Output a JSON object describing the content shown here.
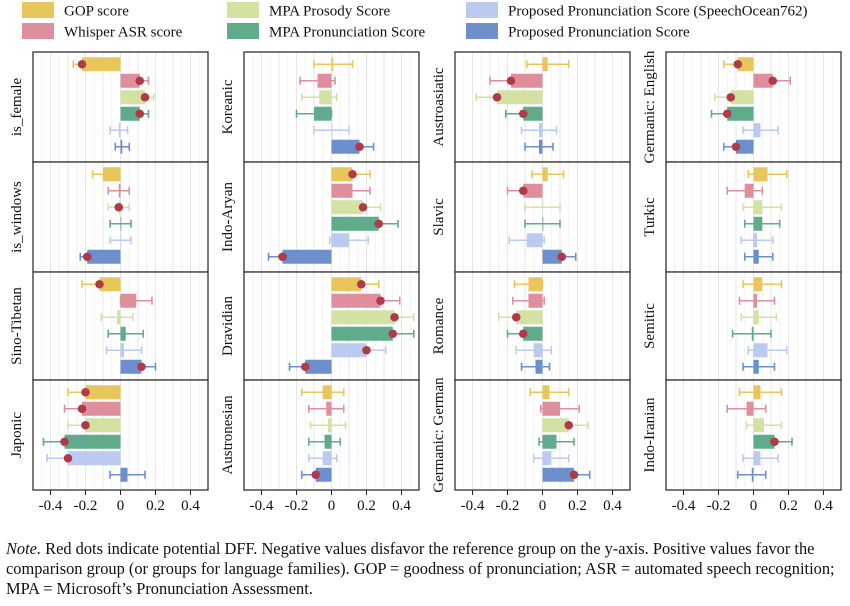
{
  "chart_data": {
    "type": "bar",
    "orientation": "horizontal",
    "legend": {
      "placement": "top",
      "items": [
        {
          "key": "gop",
          "label": "GOP score",
          "color": "#e9c65b"
        },
        {
          "key": "asr",
          "label": "Whisper ASR score",
          "color": "#de8e9c"
        },
        {
          "key": "prosody",
          "label": "MPA Prosody Score",
          "color": "#d3e2a2"
        },
        {
          "key": "mpa",
          "label": "MPA Pronunciation Score",
          "color": "#5fab8c"
        },
        {
          "key": "prop762",
          "label": "Proposed Pronunciation Score (SpeechOcean762)",
          "color": "#bccaf0"
        },
        {
          "key": "proposed",
          "label": "Proposed Pronunciation Score",
          "color": "#6d8fcc"
        }
      ]
    },
    "dot_color": "#b03a48",
    "xlim": [
      -0.5,
      0.5
    ],
    "xticks": [
      -0.4,
      -0.2,
      0,
      0.2,
      0.4
    ],
    "xtick_labels": [
      "-0.4",
      "-0.2",
      "0",
      "0.2",
      "0.4"
    ],
    "grid": true,
    "panels": [
      {
        "label": "is_female",
        "values": [
          -0.22,
          0.11,
          0.14,
          0.11,
          -0.01,
          0.01
        ],
        "err": [
          0.05,
          0.05,
          0.05,
          0.05,
          0.05,
          0.04
        ],
        "dff": [
          true,
          true,
          true,
          true,
          false,
          false
        ]
      },
      {
        "label": "is_windows",
        "values": [
          -0.1,
          -0.01,
          -0.01,
          0.0,
          0.0,
          -0.19
        ],
        "err": [
          0.06,
          0.06,
          0.06,
          0.06,
          0.06,
          0.04
        ],
        "dff": [
          false,
          false,
          true,
          false,
          false,
          true
        ]
      },
      {
        "label": "Sino-Tibetan",
        "values": [
          -0.12,
          0.09,
          -0.02,
          0.03,
          0.02,
          0.12
        ],
        "err": [
          0.1,
          0.09,
          0.09,
          0.1,
          0.1,
          0.08
        ],
        "dff": [
          true,
          false,
          false,
          false,
          false,
          true
        ]
      },
      {
        "label": "Japonic",
        "values": [
          -0.2,
          -0.22,
          -0.2,
          -0.32,
          -0.3,
          0.04
        ],
        "err": [
          0.1,
          0.1,
          0.1,
          0.12,
          0.12,
          0.1
        ],
        "dff": [
          true,
          true,
          true,
          true,
          true,
          false
        ]
      },
      {
        "label": "Koreanic",
        "values": [
          0.01,
          -0.08,
          -0.07,
          -0.1,
          0.0,
          0.16
        ],
        "err": [
          0.11,
          0.1,
          0.1,
          0.1,
          0.1,
          0.08
        ],
        "dff": [
          false,
          false,
          false,
          false,
          false,
          true
        ]
      },
      {
        "label": "Indo-Aryan",
        "values": [
          0.12,
          0.12,
          0.18,
          0.27,
          0.1,
          -0.28
        ],
        "err": [
          0.1,
          0.1,
          0.1,
          0.11,
          0.11,
          0.08
        ],
        "dff": [
          true,
          false,
          true,
          true,
          false,
          true
        ]
      },
      {
        "label": "Dravidian",
        "values": [
          0.17,
          0.28,
          0.36,
          0.35,
          0.2,
          -0.15
        ],
        "err": [
          0.1,
          0.11,
          0.11,
          0.12,
          0.11,
          0.09
        ],
        "dff": [
          true,
          true,
          true,
          true,
          true,
          true
        ]
      },
      {
        "label": "Austronesian",
        "values": [
          -0.05,
          -0.03,
          -0.02,
          -0.04,
          -0.05,
          -0.09
        ],
        "err": [
          0.12,
          0.1,
          0.1,
          0.09,
          0.08,
          0.08
        ],
        "dff": [
          false,
          false,
          false,
          false,
          false,
          true
        ]
      },
      {
        "label": "Austroasiatic",
        "values": [
          0.03,
          -0.18,
          -0.26,
          -0.11,
          -0.02,
          -0.02
        ],
        "err": [
          0.12,
          0.12,
          0.12,
          0.1,
          0.1,
          0.08
        ],
        "dff": [
          false,
          true,
          true,
          true,
          false,
          false
        ]
      },
      {
        "label": "Slavic",
        "values": [
          0.03,
          -0.11,
          0.0,
          0.0,
          -0.09,
          0.11
        ],
        "err": [
          0.09,
          0.09,
          0.1,
          0.1,
          0.1,
          0.08
        ],
        "dff": [
          false,
          true,
          false,
          false,
          false,
          true
        ]
      },
      {
        "label": "Romance",
        "values": [
          -0.08,
          -0.08,
          -0.15,
          -0.11,
          -0.05,
          -0.04
        ],
        "err": [
          0.08,
          0.09,
          0.1,
          0.09,
          0.1,
          0.08
        ],
        "dff": [
          false,
          false,
          true,
          true,
          false,
          false
        ]
      },
      {
        "label": "Germanic: German",
        "values": [
          0.04,
          0.1,
          0.15,
          0.08,
          0.05,
          0.18
        ],
        "err": [
          0.11,
          0.11,
          0.11,
          0.1,
          0.1,
          0.09
        ],
        "dff": [
          false,
          false,
          true,
          false,
          false,
          true
        ]
      },
      {
        "label": "Germanic: English",
        "values": [
          -0.09,
          0.11,
          -0.13,
          -0.15,
          0.04,
          -0.1
        ],
        "err": [
          0.08,
          0.1,
          0.09,
          0.09,
          0.1,
          0.07
        ],
        "dff": [
          true,
          true,
          true,
          true,
          false,
          true
        ]
      },
      {
        "label": "Turkic",
        "values": [
          0.08,
          -0.05,
          0.05,
          0.05,
          0.02,
          0.03
        ],
        "err": [
          0.11,
          0.1,
          0.11,
          0.1,
          0.09,
          0.08
        ],
        "dff": [
          false,
          false,
          false,
          false,
          false,
          false
        ]
      },
      {
        "label": "Semitic",
        "values": [
          0.05,
          0.02,
          0.03,
          -0.01,
          0.08,
          0.03
        ],
        "err": [
          0.11,
          0.1,
          0.1,
          0.11,
          0.11,
          0.09
        ],
        "dff": [
          false,
          false,
          false,
          false,
          false,
          false
        ]
      },
      {
        "label": "Indo-Iranian",
        "values": [
          0.04,
          -0.04,
          0.06,
          0.12,
          0.04,
          -0.01
        ],
        "err": [
          0.12,
          0.11,
          0.1,
          0.1,
          0.1,
          0.08
        ],
        "dff": [
          false,
          false,
          false,
          true,
          false,
          false
        ]
      }
    ]
  },
  "note": {
    "prefix": "Note.",
    "text": " Red dots indicate potential DFF. Negative values disfavor the reference group on the y-axis. Positive values favor the comparison group (or groups for language families). GOP = goodness of pronunciation; ASR = automated speech recognition; MPA = Microsoft’s Pronunciation Assessment."
  }
}
